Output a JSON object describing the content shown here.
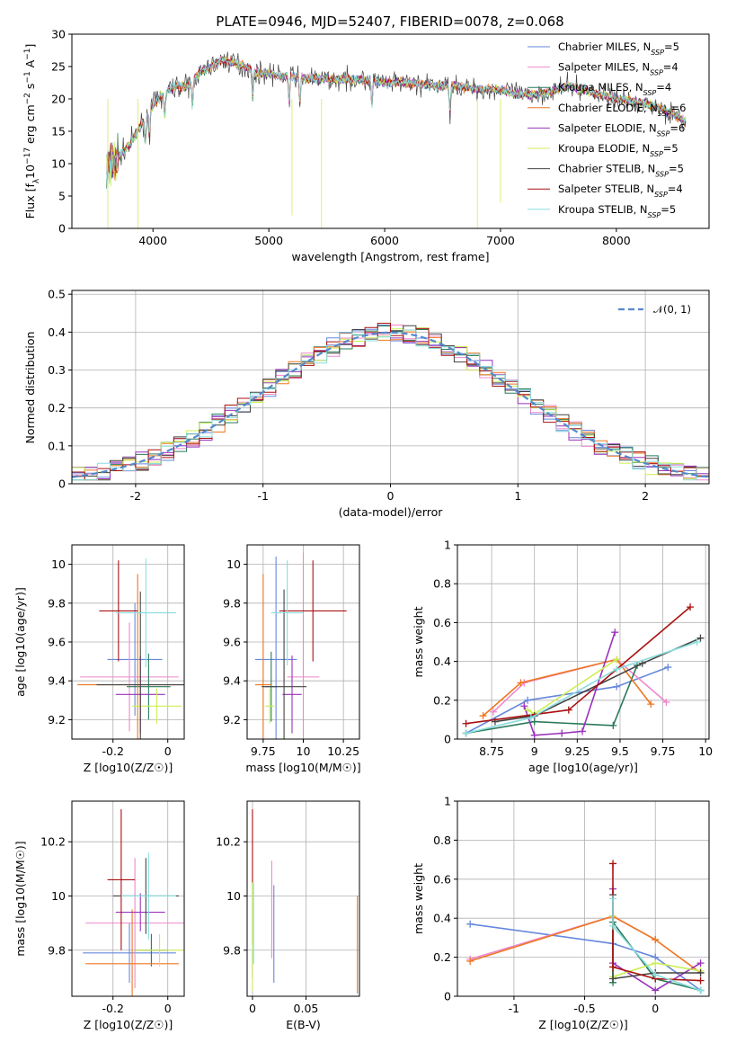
{
  "title": "PLATE=0946, MJD=52407, FIBERID=0078, z=0.068",
  "colors": {
    "c0": "#6688dd",
    "c1": "#ee88cc",
    "c2": "#2a7a5a",
    "c3": "#9933bb",
    "c4": "#ccee55",
    "c5": "#444444",
    "c6": "#aa1111",
    "c7": "#88dddd",
    "c8": "#ee7722",
    "grid": "#b0b0b0",
    "gauss": "#5588cc"
  },
  "legend_entries": [
    {
      "text": "Chabrier MILES, N",
      "sub": "SSP",
      "tail": "=5",
      "color": "#6688dd"
    },
    {
      "text": "Salpeter MILES, N",
      "sub": "SSP",
      "tail": "=4",
      "color": "#ee88cc"
    },
    {
      "text": "Kroupa MILES, N",
      "sub": "SSP",
      "tail": "=4",
      "color": "#2a7a5a"
    },
    {
      "text": "Chabrier ELODIE, N",
      "sub": "SSP",
      "tail": "=6",
      "color": "#ee7722"
    },
    {
      "text": "Salpeter ELODIE, N",
      "sub": "SSP",
      "tail": "=6",
      "color": "#9933bb"
    },
    {
      "text": "Kroupa ELODIE, N",
      "sub": "SSP",
      "tail": "=5",
      "color": "#ccee55"
    },
    {
      "text": "Chabrier STELIB, N",
      "sub": "SSP",
      "tail": "=5",
      "color": "#444444"
    },
    {
      "text": "Salpeter STELIB, N",
      "sub": "SSP",
      "tail": "=4",
      "color": "#aa1111"
    },
    {
      "text": "Kroupa STELIB, N",
      "sub": "SSP",
      "tail": "=5",
      "color": "#88dddd"
    }
  ],
  "chart_data": [
    {
      "type": "line",
      "id": "spectrum",
      "xlabel": "wavelength [Angstrom, rest frame]",
      "ylabel": "Flux [f_λ 10^-17 erg cm^-2 s^-1 A^-1]",
      "xlim": [
        3300,
        8800
      ],
      "ylim": [
        0,
        30
      ],
      "xticks": [
        4000,
        5000,
        6000,
        7000,
        8000
      ],
      "yticks": [
        0,
        5,
        10,
        15,
        20,
        25,
        30
      ],
      "grid": false,
      "legend": "top-right",
      "continuum_x": [
        3600,
        3700,
        3800,
        3900,
        4000,
        4100,
        4200,
        4300,
        4400,
        4500,
        4600,
        4700,
        4800,
        4900,
        5000,
        5100,
        5200,
        5400,
        5600,
        5800,
        6000,
        6200,
        6400,
        6600,
        6800,
        7000,
        7200,
        7400,
        7600,
        7800,
        8000,
        8200,
        8400,
        8600
      ],
      "continuum_y": [
        10,
        11,
        13,
        16,
        19,
        21,
        22,
        22,
        24,
        25,
        26,
        25.5,
        25,
        24,
        24,
        23.5,
        23.5,
        23,
        23,
        23,
        22.5,
        22.5,
        22,
        22,
        21.5,
        21.5,
        20.5,
        21,
        22,
        21,
        20,
        19.5,
        18.5,
        16.5
      ]
    },
    {
      "type": "bar",
      "id": "residuals",
      "xlabel": "(data-model)/error",
      "ylabel": "Normed distribution",
      "legend_label": "𝒩(0, 1)",
      "xlim": [
        -2.5,
        2.5
      ],
      "ylim": [
        0,
        0.51
      ],
      "xticks": [
        -2,
        -1,
        0,
        1,
        2
      ],
      "yticks": [
        0.0,
        0.1,
        0.2,
        0.3,
        0.4,
        0.5
      ],
      "grid": true,
      "bin_width": 0.1,
      "bin_start": -2.5
    },
    {
      "type": "scatter",
      "id": "age_vs_Z",
      "xlabel": "Z [log10(Z/Z☉)]",
      "ylabel": "age  [log10(age/yr)]",
      "xlim": [
        -0.35,
        0.06
      ],
      "ylim": [
        9.1,
        10.1
      ],
      "xticks": [
        -0.2,
        0.0
      ],
      "yticks": [
        9.2,
        9.4,
        9.6,
        9.8,
        10.0
      ],
      "grid": true,
      "points": [
        {
          "c": "#6688dd",
          "x": -0.12,
          "y": 9.51,
          "xe": 0.1,
          "ye": 0.29
        },
        {
          "c": "#ee88cc",
          "x": -0.14,
          "y": 9.42,
          "xe": 0.18,
          "ye": 0.28
        },
        {
          "c": "#2a7a5a",
          "x": -0.07,
          "y": 9.37,
          "xe": 0.08,
          "ye": 0.17
        },
        {
          "c": "#ee7722",
          "x": -0.11,
          "y": 9.38,
          "xe": 0.22,
          "ye": 0.57
        },
        {
          "c": "#9933bb",
          "x": -0.1,
          "y": 9.33,
          "xe": 0.09,
          "ye": 0.2
        },
        {
          "c": "#ccee55",
          "x": -0.04,
          "y": 9.27,
          "xe": 0.09,
          "ye": 0.09
        },
        {
          "c": "#444444",
          "x": -0.1,
          "y": 9.38,
          "xe": 0.16,
          "ye": 0.48
        },
        {
          "c": "#aa1111",
          "x": -0.18,
          "y": 9.76,
          "xe": 0.07,
          "ye": 0.26
        },
        {
          "c": "#88dddd",
          "x": -0.08,
          "y": 9.75,
          "xe": 0.11,
          "ye": 0.28
        }
      ]
    },
    {
      "type": "scatter",
      "id": "age_vs_mass",
      "xlabel": "mass [log10(M/M☉)]",
      "ylabel": "",
      "xlim": [
        9.65,
        10.35
      ],
      "ylim": [
        9.1,
        10.1
      ],
      "xticks": [
        9.75,
        10.0,
        10.25
      ],
      "yticks": [
        9.2,
        9.4,
        9.6,
        9.8,
        10.0
      ],
      "grid": true,
      "points": [
        {
          "c": "#6688dd",
          "x": 9.83,
          "y": 9.51,
          "xe": 0.13,
          "ye": 0.53
        },
        {
          "c": "#ee88cc",
          "x": 10.0,
          "y": 9.42,
          "xe": 0.1,
          "ye": 0.64
        },
        {
          "c": "#2a7a5a",
          "x": 9.8,
          "y": 9.37,
          "xe": 0.04,
          "ye": 0.18
        },
        {
          "c": "#ee7722",
          "x": 9.75,
          "y": 9.38,
          "xe": 0.05,
          "ye": 0.57
        },
        {
          "c": "#9933bb",
          "x": 9.93,
          "y": 9.33,
          "xe": 0.06,
          "ye": 0.2
        },
        {
          "c": "#ccee55",
          "x": 9.79,
          "y": 9.27,
          "xe": 0.03,
          "ye": 0.09
        },
        {
          "c": "#444444",
          "x": 9.88,
          "y": 9.37,
          "xe": 0.14,
          "ye": 0.5
        },
        {
          "c": "#aa1111",
          "x": 10.06,
          "y": 9.76,
          "xe": 0.21,
          "ye": 0.26
        },
        {
          "c": "#88dddd",
          "x": 9.9,
          "y": 9.75,
          "xe": 0.1,
          "ye": 0.27
        }
      ]
    },
    {
      "type": "line",
      "id": "weight_vs_age",
      "xlabel": "age  [log10(age/yr)]",
      "ylabel": "mass weight",
      "xlim": [
        8.55,
        10.02
      ],
      "ylim": [
        0,
        1
      ],
      "xticks": [
        8.75,
        9.0,
        9.25,
        9.5,
        9.75,
        10.0
      ],
      "yticks": [
        0,
        0.2,
        0.4,
        0.6,
        0.8,
        1.0
      ],
      "grid": true,
      "series": [
        {
          "c": "#6688dd",
          "x": [
            8.6,
            8.96,
            9.48,
            9.78
          ],
          "y": [
            0.03,
            0.2,
            0.27,
            0.37
          ]
        },
        {
          "c": "#ee88cc",
          "x": [
            8.76,
            8.94,
            9.48,
            9.77
          ],
          "y": [
            0.14,
            0.29,
            0.41,
            0.19
          ]
        },
        {
          "c": "#2a7a5a",
          "x": [
            8.6,
            9.0,
            9.46,
            9.6
          ],
          "y": [
            0.03,
            0.09,
            0.07,
            0.38
          ]
        },
        {
          "c": "#ee7722",
          "x": [
            8.7,
            8.92,
            9.48,
            9.68
          ],
          "y": [
            0.12,
            0.29,
            0.41,
            0.18
          ]
        },
        {
          "c": "#9933bb",
          "x": [
            8.94,
            9.0,
            9.16,
            9.28,
            9.47
          ],
          "y": [
            0.17,
            0.02,
            0.03,
            0.04,
            0.55
          ]
        },
        {
          "c": "#ccee55",
          "x": [
            8.96,
            9.0,
            9.48
          ],
          "y": [
            0.15,
            0.13,
            0.41
          ]
        },
        {
          "c": "#444444",
          "x": [
            8.77,
            9.0,
            9.63,
            9.97
          ],
          "y": [
            0.09,
            0.12,
            0.39,
            0.52
          ]
        },
        {
          "c": "#aa1111",
          "x": [
            8.6,
            9.2,
            9.91
          ],
          "y": [
            0.08,
            0.15,
            0.68
          ]
        },
        {
          "c": "#88dddd",
          "x": [
            8.6,
            8.98,
            9.48,
            9.95
          ],
          "y": [
            0.03,
            0.11,
            0.36,
            0.5
          ]
        }
      ]
    },
    {
      "type": "scatter",
      "id": "mass_vs_Z",
      "xlabel": "Z [log10(Z/Z☉)]",
      "ylabel": "mass [log10(M/M☉)]",
      "xlim": [
        -0.35,
        0.06
      ],
      "ylim": [
        9.63,
        10.35
      ],
      "xticks": [
        -0.2,
        0.0
      ],
      "yticks": [
        9.8,
        10.0,
        10.2
      ],
      "grid": true,
      "points": [
        {
          "c": "#6688dd",
          "x": -0.14,
          "y": 9.79,
          "xe": 0.17,
          "ye": 0.11
        },
        {
          "c": "#ee88cc",
          "x": -0.12,
          "y": 9.9,
          "xe": 0.18,
          "ye": 0.24
        },
        {
          "c": "#2a7a5a",
          "x": -0.06,
          "y": 9.8,
          "xe": 0.06,
          "ye": 0.06
        },
        {
          "c": "#ee7722",
          "x": -0.13,
          "y": 9.75,
          "xe": 0.17,
          "ye": 0.2
        },
        {
          "c": "#9933bb",
          "x": -0.1,
          "y": 9.94,
          "xe": 0.09,
          "ye": 0.07
        },
        {
          "c": "#ccee55",
          "x": -0.03,
          "y": 9.8,
          "xe": 0.09,
          "ye": 0.06
        },
        {
          "c": "#444444",
          "x": -0.08,
          "y": 10.0,
          "xe": 0.12,
          "ye": 0.14
        },
        {
          "c": "#aa1111",
          "x": -0.17,
          "y": 10.06,
          "xe": 0.05,
          "ye": 0.26
        },
        {
          "c": "#88dddd",
          "x": -0.07,
          "y": 10.0,
          "xe": 0.1,
          "ye": 0.16
        }
      ]
    },
    {
      "type": "scatter",
      "id": "mass_vs_EBV",
      "xlabel": "E(B-V)",
      "ylabel": "",
      "xlim": [
        -0.005,
        0.1
      ],
      "ylim": [
        9.63,
        10.35
      ],
      "xticks": [
        0.0,
        0.05
      ],
      "yticks": [
        9.8,
        10.0,
        10.2
      ],
      "grid": true,
      "points": [
        {
          "c": "#6688dd",
          "x": 0.02,
          "y": 9.86,
          "xe": 0,
          "ye": 0.18
        },
        {
          "c": "#ee88cc",
          "x": 0.018,
          "y": 9.95,
          "xe": 0,
          "ye": 0.18
        },
        {
          "c": "#aa1111",
          "x": 0.0,
          "y": 10.07,
          "xe": 0,
          "ye": 0.25
        },
        {
          "c": "#444444",
          "x": 0.0,
          "y": 9.75,
          "xe": 0,
          "ye": 0.05
        },
        {
          "c": "#ccee55",
          "x": 0.0,
          "y": 9.85,
          "xe": 0,
          "ye": 0.2
        },
        {
          "c": "#88dddd",
          "x": 0.001,
          "y": 9.9,
          "xe": 0,
          "ye": 0.15
        },
        {
          "c": "#ee7722",
          "x": 0.098,
          "y": 9.82,
          "xe": 0,
          "ye": 0.18
        }
      ]
    },
    {
      "type": "line",
      "id": "weight_vs_Z",
      "xlabel": "Z [log10(Z/Z☉)]",
      "ylabel": "mass weight",
      "xlim": [
        -1.4,
        0.38
      ],
      "ylim": [
        0,
        1
      ],
      "xticks": [
        -1.0,
        -0.5,
        0.0
      ],
      "yticks": [
        0,
        0.2,
        0.4,
        0.6,
        0.8,
        1.0
      ],
      "grid": true,
      "series": [
        {
          "c": "#6688dd",
          "x": [
            -1.31,
            -0.3,
            0.0,
            0.32
          ],
          "y": [
            0.37,
            0.27,
            0.2,
            0.03
          ]
        },
        {
          "c": "#ee88cc",
          "x": [
            -1.31,
            -0.3,
            0.0
          ],
          "y": [
            0.19,
            0.41,
            0.29
          ]
        },
        {
          "c": "#2a7a5a",
          "x": [
            -0.3,
            -0.3,
            0.0,
            0.32
          ],
          "y": [
            0.07,
            0.38,
            0.09,
            0.03
          ]
        },
        {
          "c": "#ee7722",
          "x": [
            -1.31,
            -0.3,
            0.0,
            0.32
          ],
          "y": [
            0.18,
            0.41,
            0.29,
            0.12
          ]
        },
        {
          "c": "#9933bb",
          "x": [
            -0.3,
            -0.3,
            0.0,
            0.32
          ],
          "y": [
            0.55,
            0.17,
            0.03,
            0.17
          ]
        },
        {
          "c": "#ccee55",
          "x": [
            -0.3,
            -0.3,
            0.0,
            0.32
          ],
          "y": [
            0.41,
            0.1,
            0.17,
            0.13
          ]
        },
        {
          "c": "#444444",
          "x": [
            -0.3,
            -0.3,
            0.0,
            0.32
          ],
          "y": [
            0.52,
            0.09,
            0.12,
            0.12
          ]
        },
        {
          "c": "#aa1111",
          "x": [
            -0.3,
            -0.3,
            0.0,
            0.32
          ],
          "y": [
            0.68,
            0.15,
            0.09,
            0.08
          ]
        },
        {
          "c": "#88dddd",
          "x": [
            -0.3,
            -0.3,
            0.0,
            0.32
          ],
          "y": [
            0.5,
            0.36,
            0.11,
            0.03
          ]
        }
      ]
    }
  ]
}
